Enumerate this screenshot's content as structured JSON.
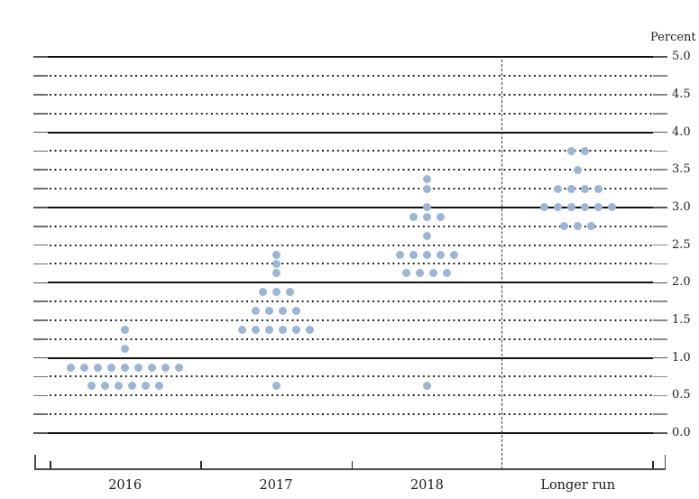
{
  "chart_data": {
    "type": "scatter",
    "subtype": "fomc-dot-plot",
    "ylabel": "Percent",
    "categories": [
      "2016",
      "2017",
      "2018",
      "Longer run"
    ],
    "y_axis": {
      "min": 0.0,
      "max": 5.0,
      "label_step": 0.5,
      "grid_step": 0.25,
      "tick_labels": [
        "5.0",
        "4.5",
        "4.0",
        "3.5",
        "3.0",
        "2.5",
        "2.0",
        "1.5",
        "1.0",
        "0.5",
        "0.0"
      ],
      "grid": "solid lines at integers, dotted lines at quarter points",
      "legend_position": "none"
    },
    "series": [
      {
        "name": "2016",
        "dots": [
          {
            "value": 1.375,
            "count": 1
          },
          {
            "value": 1.125,
            "count": 1
          },
          {
            "value": 0.875,
            "count": 9
          },
          {
            "value": 0.625,
            "count": 6
          }
        ]
      },
      {
        "name": "2017",
        "dots": [
          {
            "value": 2.375,
            "count": 1
          },
          {
            "value": 2.25,
            "count": 1
          },
          {
            "value": 2.125,
            "count": 1
          },
          {
            "value": 1.875,
            "count": 3
          },
          {
            "value": 1.625,
            "count": 4
          },
          {
            "value": 1.375,
            "count": 6
          },
          {
            "value": 0.625,
            "count": 1
          }
        ]
      },
      {
        "name": "2018",
        "dots": [
          {
            "value": 3.375,
            "count": 1
          },
          {
            "value": 3.25,
            "count": 1
          },
          {
            "value": 3.0,
            "count": 1
          },
          {
            "value": 2.875,
            "count": 3
          },
          {
            "value": 2.625,
            "count": 1
          },
          {
            "value": 2.375,
            "count": 5
          },
          {
            "value": 2.125,
            "count": 4
          },
          {
            "value": 0.625,
            "count": 1
          }
        ]
      },
      {
        "name": "Longer run",
        "dots": [
          {
            "value": 3.75,
            "count": 2
          },
          {
            "value": 3.5,
            "count": 1
          },
          {
            "value": 3.25,
            "count": 4
          },
          {
            "value": 3.0,
            "count": 6
          },
          {
            "value": 2.75,
            "count": 3
          }
        ]
      }
    ]
  },
  "colors": {
    "dot": "#9ab5d8",
    "solid_line": "#111111",
    "dotted_line": "#161616",
    "axis": "#4a4a4a",
    "text": "#1a1a1a"
  }
}
